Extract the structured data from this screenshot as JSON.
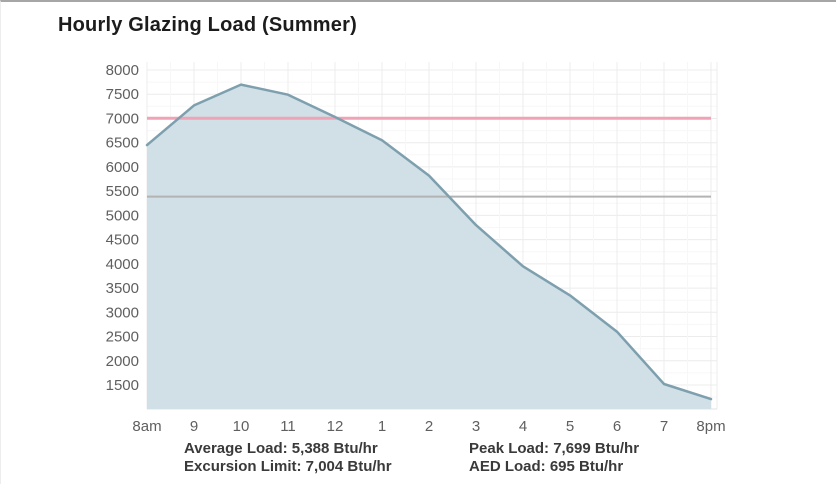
{
  "page": {
    "title": "Hourly Glazing Load (Summer)"
  },
  "chart_data": {
    "type": "area",
    "title": "Hourly Glazing Load (Summer)",
    "xlabel": "",
    "ylabel": "",
    "x_labels": [
      "8am",
      "9",
      "10",
      "11",
      "12",
      "1",
      "2",
      "3",
      "4",
      "5",
      "6",
      "7",
      "8pm"
    ],
    "series": [
      {
        "name": "Hourly Glazing Load (Btu/hr)",
        "values": [
          6450,
          7270,
          7699,
          7490,
          7030,
          6550,
          5820,
          4800,
          3950,
          3350,
          2600,
          1520,
          1210
        ]
      }
    ],
    "y_ticks": [
      8000,
      7500,
      7000,
      6500,
      6000,
      5500,
      5000,
      4500,
      4000,
      3500,
      3000,
      2500,
      2000,
      1500
    ],
    "axis": {
      "y_min": 1005,
      "y_max": 8165
    },
    "grid": true,
    "legend_position": "none",
    "reference_lines": [
      {
        "name": "excursion-limit-line",
        "value": 7004,
        "color": "#f0a3b7",
        "width": 3
      },
      {
        "name": "average-load-line",
        "value": 5388,
        "color": "#b3b3b3",
        "width": 2
      }
    ],
    "colors": {
      "area_fill": "#d0e0e6",
      "area_stroke": "#7e9fae",
      "grid_major": "#ececec",
      "grid_minor": "#f7f7f7",
      "axis_text": "#5f5f5f"
    }
  },
  "stats": {
    "left": [
      "Average Load: 5,388 Btu/hr",
      "Excursion Limit: 7,004 Btu/hr"
    ],
    "right": [
      "Peak Load: 7,699 Btu/hr",
      "AED Load: 695 Btu/hr"
    ]
  }
}
